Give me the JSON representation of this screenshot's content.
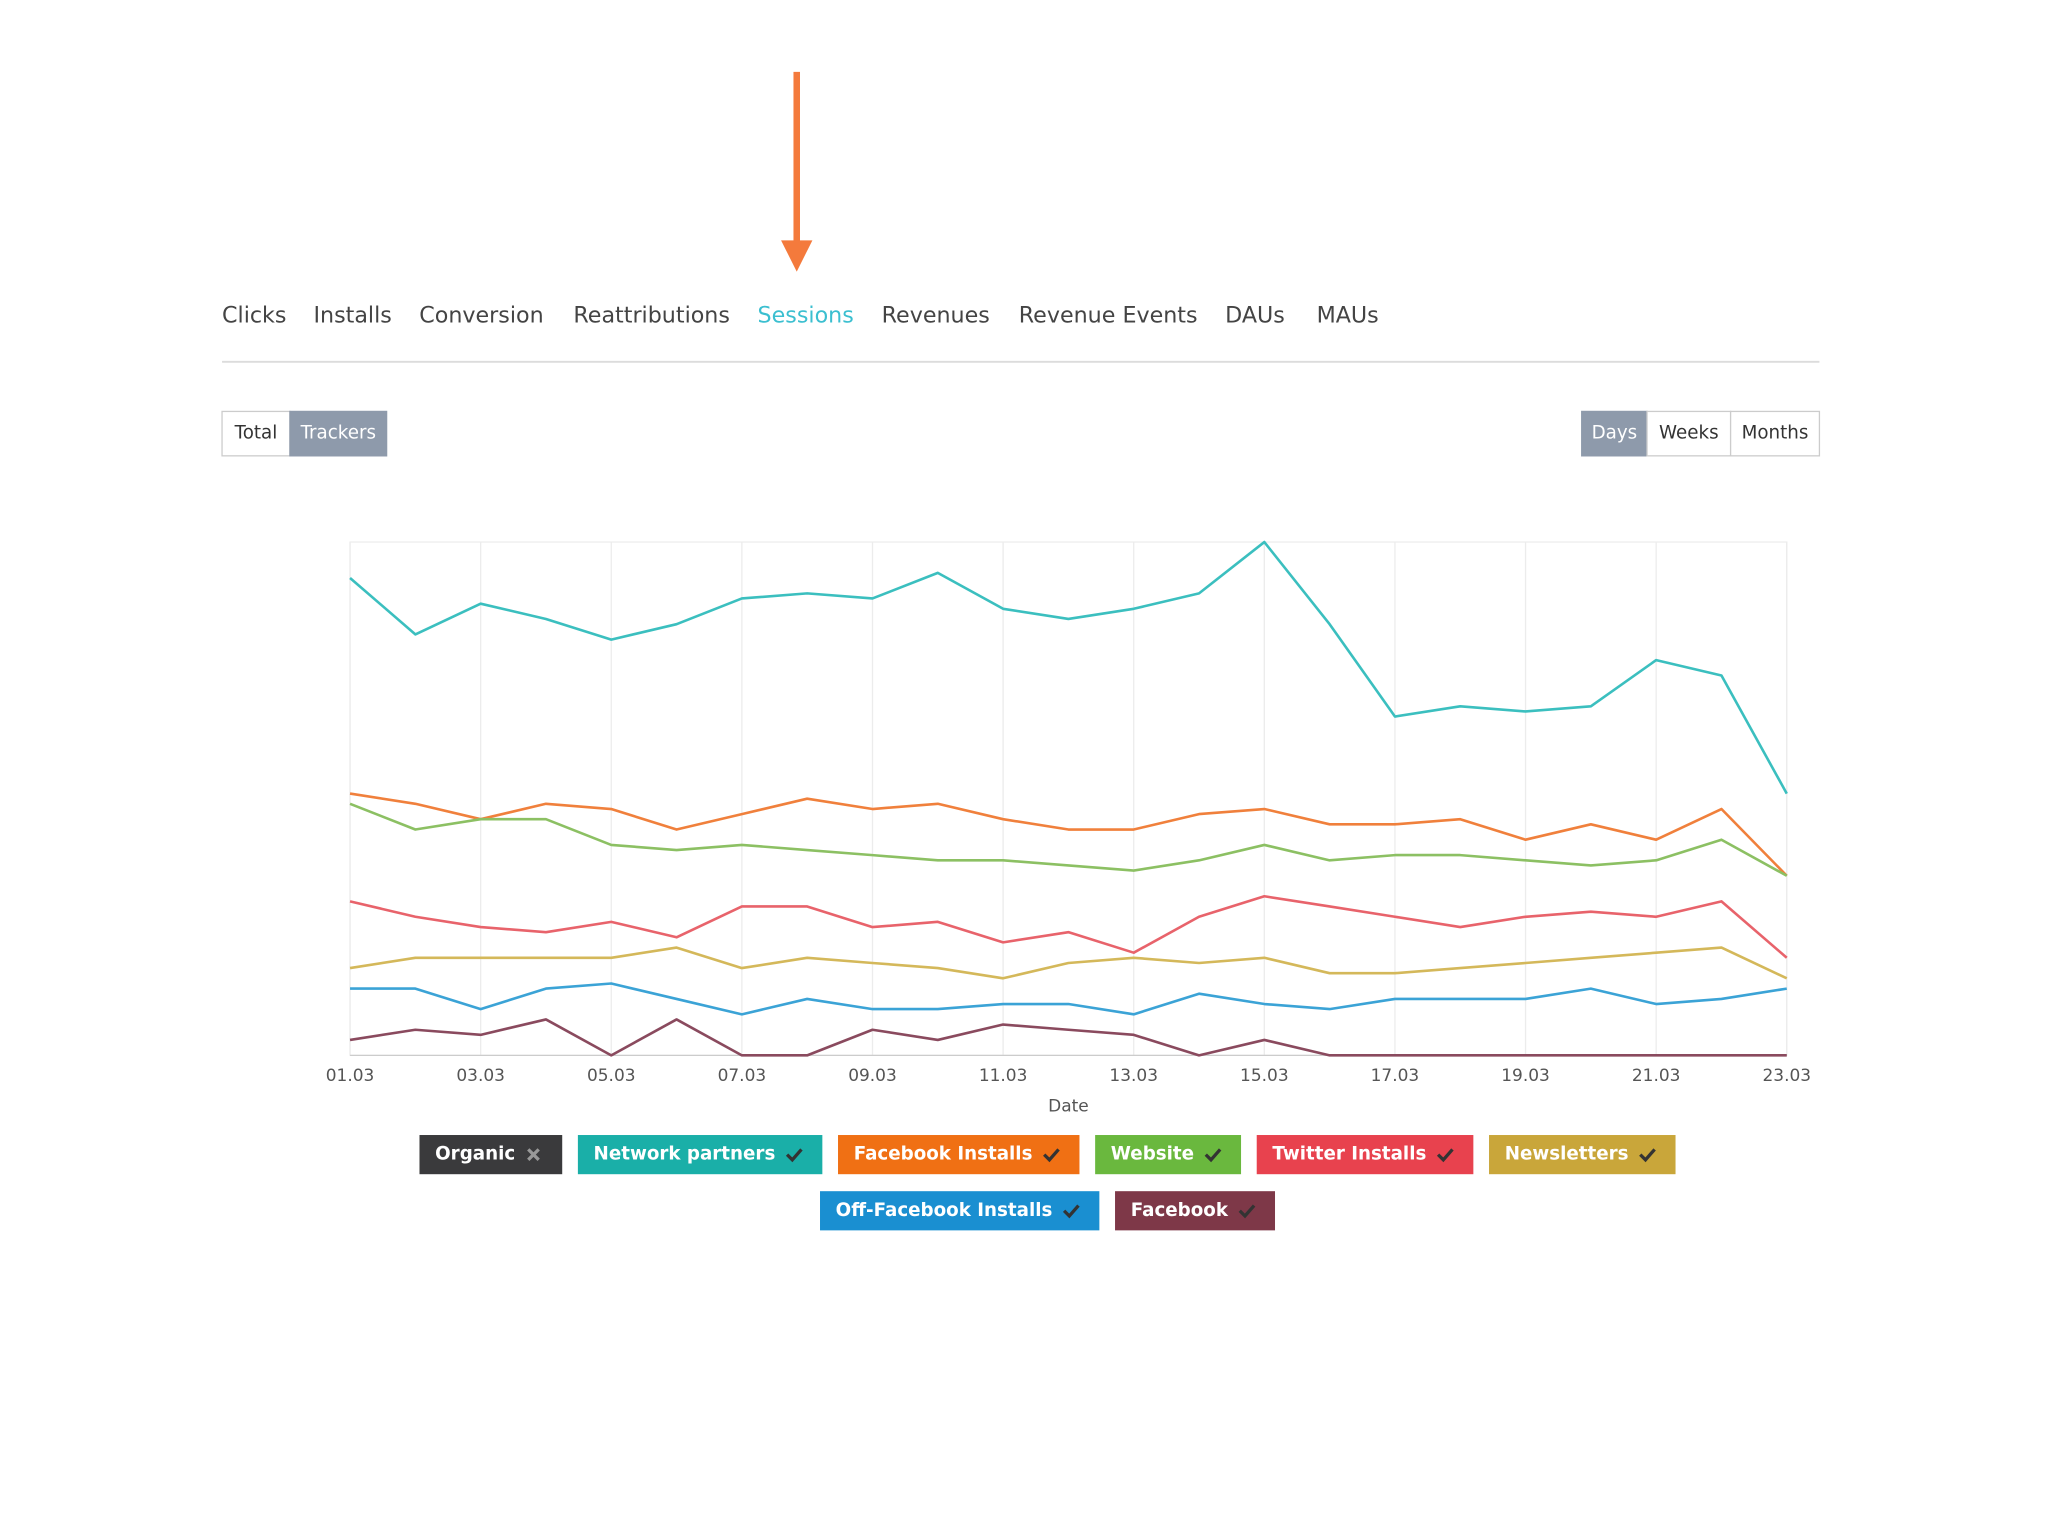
{
  "tabs": [
    "Clicks",
    "Installs",
    "Conversion",
    "Reattributions",
    "Sessions",
    "Revenues",
    "Revenue Events",
    "DAUs",
    "MAUs"
  ],
  "active_tab": 4,
  "view_buttons": [
    "Total",
    "Trackers"
  ],
  "active_view": 1,
  "period_buttons": [
    "Days",
    "Weeks",
    "Months"
  ],
  "active_period": 0,
  "chart_data": {
    "type": "line",
    "x_label": "Date",
    "categories": [
      "01.03",
      null,
      "03.03",
      null,
      "05.03",
      null,
      "07.03",
      null,
      "09.03",
      null,
      "11.03",
      null,
      "13.03",
      null,
      "15.03",
      null,
      "17.03",
      null,
      "19.03",
      null,
      "21.03",
      null,
      "23.03"
    ],
    "ylim": [
      0,
      100
    ],
    "grid": true,
    "series": [
      {
        "name": "Network partners",
        "color": "#3bbfbf",
        "legend_color": "#1aafa8",
        "values": [
          93,
          82,
          88,
          85,
          81,
          84,
          89,
          90,
          89,
          94,
          87,
          85,
          87,
          90,
          100,
          84,
          66,
          68,
          67,
          68,
          77,
          74,
          51
        ]
      },
      {
        "name": "Facebook Installs",
        "color": "#f0803c",
        "legend_color": "#f07014",
        "values": [
          51,
          49,
          46,
          49,
          48,
          44,
          47,
          50,
          48,
          49,
          46,
          44,
          44,
          47,
          48,
          45,
          45,
          46,
          42,
          45,
          42,
          48,
          35
        ]
      },
      {
        "name": "Website",
        "color": "#8cc063",
        "legend_color": "#6ab83e",
        "values": [
          49,
          44,
          46,
          46,
          41,
          40,
          41,
          40,
          39,
          38,
          38,
          37,
          36,
          38,
          41,
          38,
          39,
          39,
          38,
          37,
          38,
          42,
          35
        ]
      },
      {
        "name": "Twitter Installs",
        "color": "#e8636b",
        "legend_color": "#e8424e",
        "values": [
          30,
          27,
          25,
          24,
          26,
          23,
          29,
          29,
          25,
          26,
          22,
          24,
          20,
          27,
          31,
          29,
          27,
          25,
          27,
          28,
          27,
          30,
          19
        ]
      },
      {
        "name": "Newsletters",
        "color": "#d4b85a",
        "legend_color": "#c9a63a",
        "values": [
          17,
          19,
          19,
          19,
          19,
          21,
          17,
          19,
          18,
          17,
          15,
          18,
          19,
          18,
          19,
          16,
          16,
          17,
          18,
          19,
          20,
          21,
          15
        ]
      },
      {
        "name": "Off-Facebook Installs",
        "color": "#3ba3d6",
        "legend_color": "#1a8fd1",
        "values": [
          13,
          13,
          9,
          13,
          14,
          11,
          8,
          11,
          9,
          9,
          10,
          10,
          8,
          12,
          10,
          9,
          11,
          11,
          11,
          13,
          10,
          11,
          13
        ]
      },
      {
        "name": "Facebook",
        "color": "#8a4a5e",
        "legend_color": "#7e3848",
        "values": [
          3,
          5,
          4,
          7,
          0,
          7,
          0,
          0,
          5,
          3,
          6,
          5,
          4,
          0,
          3,
          0,
          0,
          0,
          0,
          0,
          0,
          0,
          0
        ]
      }
    ],
    "hidden_series": [
      {
        "name": "Organic",
        "legend_color": "#3a3a3c"
      }
    ]
  }
}
